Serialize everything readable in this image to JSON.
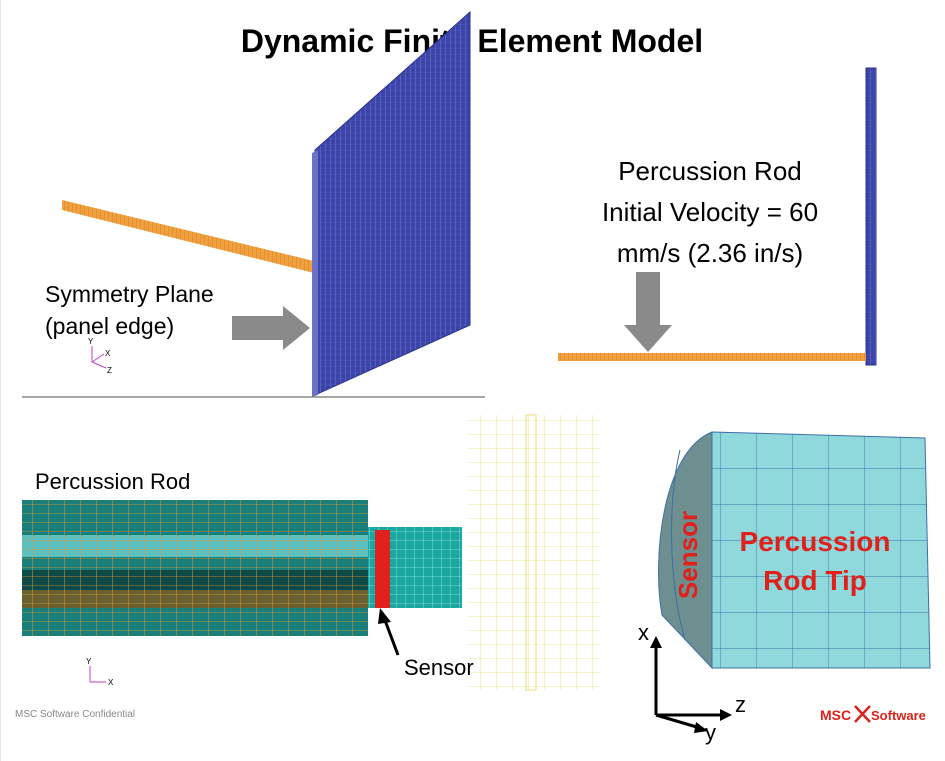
{
  "title": "Dynamic Finite Element Model",
  "panels": {
    "top_left": {
      "label_lines": [
        "Symmetry Plane",
        "(panel edge)"
      ],
      "axes": [
        "Y",
        "X",
        "Z"
      ]
    },
    "top_right": {
      "label_lines": [
        "Percussion Rod",
        "Initial Velocity  = 60",
        "mm/s (2.36 in/s)"
      ]
    },
    "bottom_left": {
      "label": "Percussion Rod",
      "callout": "Sensor",
      "axes": [
        "Y",
        "X"
      ]
    },
    "bottom_right": {
      "sensor": "Sensor",
      "tip_lines": [
        "Percussion",
        "Rod Tip"
      ],
      "axes": [
        "x",
        "z",
        "y"
      ]
    }
  },
  "footer": {
    "confidential": "MSC Software Confidential",
    "logo": [
      "MSC",
      "Software"
    ]
  }
}
